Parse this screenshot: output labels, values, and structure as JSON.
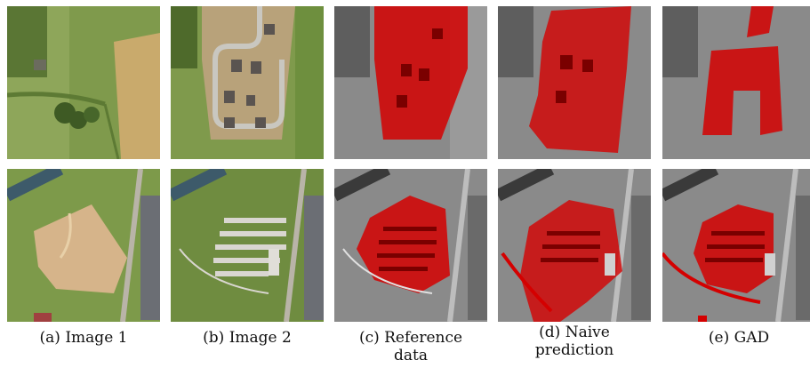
{
  "figure": {
    "captions": [
      {
        "label": "(a) Image 1",
        "line2": ""
      },
      {
        "label": "(b) Image 2",
        "line2": ""
      },
      {
        "label": "(c) Reference",
        "line2": "data"
      },
      {
        "label": "(d) Naive",
        "line2": "prediction"
      },
      {
        "label": "(e) GAD",
        "line2": ""
      }
    ],
    "rows": [
      "row-1-rural-area",
      "row-2-construction-site"
    ],
    "colors": {
      "grass": "#8fa456",
      "field": "#c8a86a",
      "bare_soil": "#d6b48a",
      "overlay_red": "#d40000",
      "grayscale_bg": "#8a8a8a"
    }
  }
}
